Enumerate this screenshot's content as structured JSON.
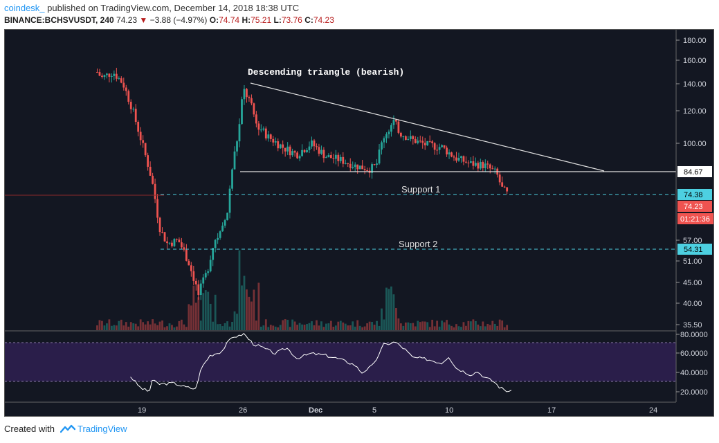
{
  "header": {
    "author": "coindesk_",
    "published_text": "published on TradingView.com, December 14, 2018 18:38 UTC",
    "symbol": "BINANCE:BCHSVUSDT, 240",
    "last": "74.23",
    "change_arrow": "▼",
    "change": "−3.88 (−4.97%)",
    "o_label": "O:",
    "o_value": "74.74",
    "h_label": "H:",
    "h_value": "75.21",
    "l_label": "L:",
    "l_value": "73.76",
    "c_label": "C:",
    "c_value": "74.23"
  },
  "footer": {
    "created_with": "Created with",
    "brand": "TradingView"
  },
  "colors": {
    "background": "#131722",
    "up": "#26a69a",
    "down": "#ef5350",
    "support_line": "#4dd0e1",
    "rsi_band": "#2a1e4a",
    "rsi_line": "#ffffff"
  },
  "chart_data": {
    "type": "candlestick",
    "title": "",
    "interval": "240",
    "price_scale_ticks": [
      "180.00",
      "160.00",
      "140.00",
      "120.00",
      "100.00",
      "57.00",
      "51.00",
      "45.00",
      "40.00",
      "35.50"
    ],
    "rsi_scale_ticks": [
      "80.0000",
      "60.0000",
      "40.0000",
      "20.0000"
    ],
    "x_ticks": [
      "19",
      "26",
      "Dec",
      "5",
      "10",
      "17",
      "24"
    ],
    "price_labels": {
      "triangle_base": "84.67",
      "support1": "74.38",
      "last_price": "74.23",
      "countdown": "01:21:36",
      "support2": "54.31"
    },
    "annotations": {
      "pattern": "Descending triangle (bearish)",
      "support1": "Support 1",
      "support2": "Support 2"
    },
    "levels": {
      "triangle_base": 84.67,
      "support1": 74.38,
      "support2": 54.31,
      "last_price": 74.23,
      "triangle_top": 141
    },
    "rsi_bands": [
      70,
      30
    ],
    "price_anchor_series": [
      {
        "t": 16.2,
        "v": 150
      },
      {
        "t": 16.5,
        "v": 145
      },
      {
        "t": 17.3,
        "v": 150
      },
      {
        "t": 18.0,
        "v": 140
      },
      {
        "t": 18.5,
        "v": 125
      },
      {
        "t": 19.3,
        "v": 100
      },
      {
        "t": 20.0,
        "v": 80
      },
      {
        "t": 20.5,
        "v": 62
      },
      {
        "t": 21.0,
        "v": 56
      },
      {
        "t": 21.8,
        "v": 57
      },
      {
        "t": 22.5,
        "v": 51
      },
      {
        "t": 23.2,
        "v": 42
      },
      {
        "t": 23.8,
        "v": 48
      },
      {
        "t": 24.3,
        "v": 57
      },
      {
        "t": 24.8,
        "v": 60
      },
      {
        "t": 25.2,
        "v": 68
      },
      {
        "t": 25.6,
        "v": 90
      },
      {
        "t": 26.0,
        "v": 108
      },
      {
        "t": 26.3,
        "v": 136
      },
      {
        "t": 26.7,
        "v": 128
      },
      {
        "t": 27.2,
        "v": 112
      },
      {
        "t": 28.0,
        "v": 104
      },
      {
        "t": 29.0,
        "v": 98
      },
      {
        "t": 30.0,
        "v": 94
      },
      {
        "t": 31.0,
        "v": 100
      },
      {
        "t": 32.0,
        "v": 93
      },
      {
        "t": 33.0,
        "v": 91
      },
      {
        "t": 34.0,
        "v": 88
      },
      {
        "t": 35.0,
        "v": 86
      },
      {
        "t": 35.5,
        "v": 88
      },
      {
        "t": 36.0,
        "v": 104
      },
      {
        "t": 36.7,
        "v": 113
      },
      {
        "t": 37.2,
        "v": 106
      },
      {
        "t": 38.0,
        "v": 102
      },
      {
        "t": 39.0,
        "v": 99
      },
      {
        "t": 40.0,
        "v": 98
      },
      {
        "t": 41.0,
        "v": 92
      },
      {
        "t": 42.0,
        "v": 89
      },
      {
        "t": 43.0,
        "v": 88
      },
      {
        "t": 43.8,
        "v": 84
      },
      {
        "t": 44.2,
        "v": 77
      },
      {
        "t": 44.6,
        "v": 74.23
      }
    ],
    "rsi_anchor_series": [
      {
        "t": 18.5,
        "v": 36
      },
      {
        "t": 19.2,
        "v": 24
      },
      {
        "t": 19.8,
        "v": 20
      },
      {
        "t": 20.0,
        "v": 32
      },
      {
        "t": 20.5,
        "v": 28
      },
      {
        "t": 21.5,
        "v": 29
      },
      {
        "t": 22.3,
        "v": 25
      },
      {
        "t": 23.0,
        "v": 23
      },
      {
        "t": 23.4,
        "v": 45
      },
      {
        "t": 24.0,
        "v": 58
      },
      {
        "t": 24.8,
        "v": 62
      },
      {
        "t": 25.2,
        "v": 71
      },
      {
        "t": 25.6,
        "v": 78
      },
      {
        "t": 26.0,
        "v": 78
      },
      {
        "t": 26.3,
        "v": 81
      },
      {
        "t": 27.0,
        "v": 70
      },
      {
        "t": 27.5,
        "v": 67
      },
      {
        "t": 28.5,
        "v": 60
      },
      {
        "t": 29.3,
        "v": 66
      },
      {
        "t": 30.0,
        "v": 55
      },
      {
        "t": 31.0,
        "v": 60
      },
      {
        "t": 32.0,
        "v": 58
      },
      {
        "t": 33.0,
        "v": 54
      },
      {
        "t": 34.0,
        "v": 48
      },
      {
        "t": 34.5,
        "v": 40
      },
      {
        "t": 35.3,
        "v": 48
      },
      {
        "t": 36.0,
        "v": 69
      },
      {
        "t": 36.8,
        "v": 72
      },
      {
        "t": 37.5,
        "v": 64
      },
      {
        "t": 38.0,
        "v": 56
      },
      {
        "t": 39.0,
        "v": 54
      },
      {
        "t": 40.0,
        "v": 50
      },
      {
        "t": 40.5,
        "v": 57
      },
      {
        "t": 41.0,
        "v": 45
      },
      {
        "t": 42.0,
        "v": 38
      },
      {
        "t": 42.5,
        "v": 41
      },
      {
        "t": 43.0,
        "v": 35
      },
      {
        "t": 43.6,
        "v": 31
      },
      {
        "t": 44.0,
        "v": 25
      },
      {
        "t": 44.5,
        "v": 21
      },
      {
        "t": 44.9,
        "v": 20
      }
    ]
  }
}
